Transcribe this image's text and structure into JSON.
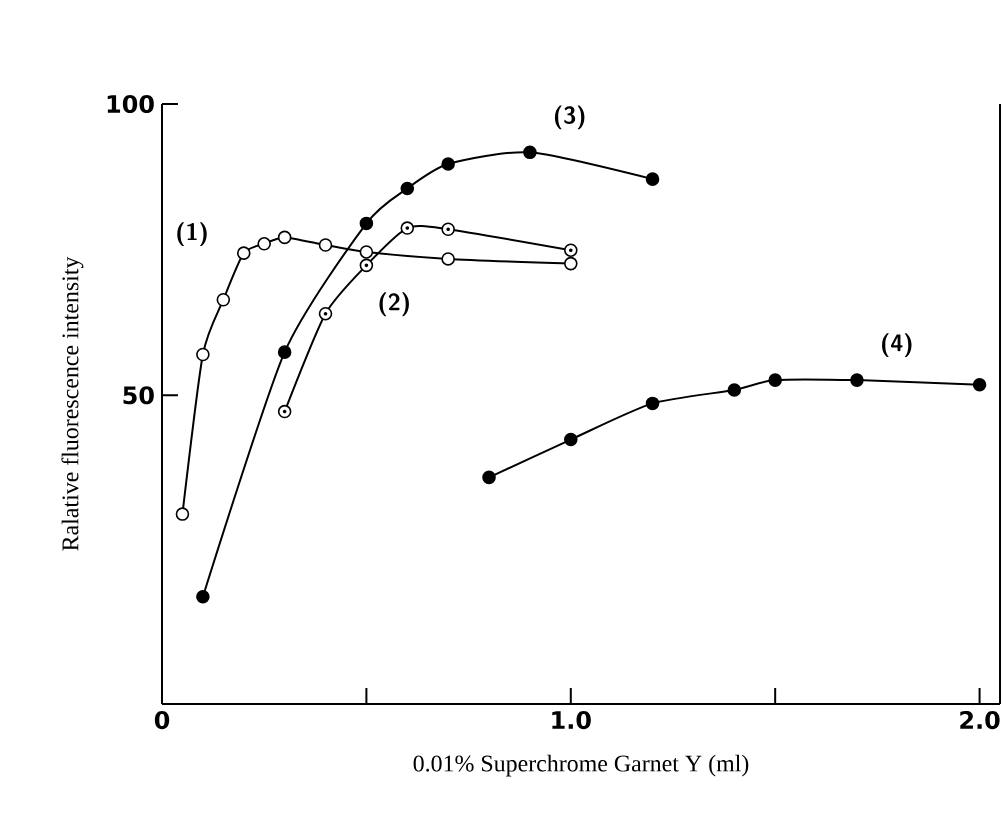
{
  "chart_data": {
    "type": "line",
    "xlabel": "0.01% Superchrome Garnet Y (ml)",
    "ylabel": "Ralative fluorescence intensity",
    "xlim": [
      0,
      2.05
    ],
    "ylim": [
      -3,
      100
    ],
    "xticks": [
      0,
      {
        "value": 0.5,
        "label": null
      },
      {
        "value": 1,
        "label": "1.0"
      },
      {
        "value": 1.5,
        "label": null
      },
      {
        "value": 2,
        "label": "2.0"
      }
    ],
    "yticks": [
      50,
      100
    ],
    "marker": "circle",
    "grid": false,
    "series": [
      {
        "name": "(1)",
        "color": "#000000",
        "x": [
          0.05,
          0.1,
          0.15,
          0.2,
          0.25,
          0.3,
          0.4,
          0.5,
          0.7,
          1.0
        ],
        "values": [
          29.6,
          57,
          66.4,
          74.4,
          76,
          77.1,
          75.8,
          74.6,
          73.4,
          72.6
        ]
      },
      {
        "name": "(2)",
        "color": "#000000",
        "x": [
          0.3,
          0.4,
          0.5,
          0.6,
          0.7,
          1.0
        ],
        "values": [
          47.2,
          64,
          72.3,
          78.7,
          78.5,
          74.9
        ]
      },
      {
        "name": "(3)",
        "color": "#000000",
        "x": [
          0.1,
          0.3,
          0.5,
          0.6,
          0.7,
          0.9,
          1.2
        ],
        "values": [
          15.4,
          57.4,
          79.5,
          85.5,
          89.7,
          91.7,
          87.1
        ]
      },
      {
        "name": "(4)",
        "color": "#000000",
        "x": [
          0.8,
          1.0,
          1.2,
          1.4,
          1.5,
          1.7,
          2.0
        ],
        "values": [
          35.9,
          42.4,
          48.6,
          50.9,
          52.6,
          52.6,
          51.8
        ]
      }
    ]
  }
}
